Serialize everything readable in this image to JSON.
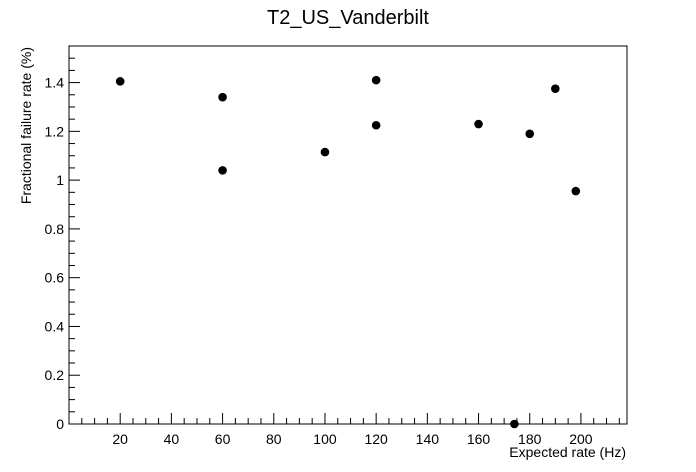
{
  "chart_data": {
    "type": "scatter",
    "title": "T2_US_Vanderbilt",
    "xlabel": "Expected rate (Hz)",
    "ylabel": "Fractional failure rate (%)",
    "xlim": [
      0,
      218
    ],
    "ylim": [
      0,
      1.55
    ],
    "x_ticks": [
      20,
      40,
      60,
      80,
      100,
      120,
      140,
      160,
      180,
      200
    ],
    "y_ticks": [
      0,
      0.2,
      0.4,
      0.6,
      0.8,
      1,
      1.2,
      1.4
    ],
    "x_tick_labels": [
      "20",
      "40",
      "60",
      "80",
      "100",
      "120",
      "140",
      "160",
      "180",
      "200"
    ],
    "y_tick_labels": [
      "0",
      "0.2",
      "0.4",
      "0.6",
      "0.8",
      "1",
      "1.2",
      "1.4"
    ],
    "grid": false,
    "points": [
      {
        "x": 20,
        "y": 1.405
      },
      {
        "x": 60,
        "y": 1.34
      },
      {
        "x": 60,
        "y": 1.04
      },
      {
        "x": 100,
        "y": 1.115
      },
      {
        "x": 120,
        "y": 1.41
      },
      {
        "x": 120,
        "y": 1.225
      },
      {
        "x": 160,
        "y": 1.23
      },
      {
        "x": 174,
        "y": 0.0
      },
      {
        "x": 180,
        "y": 1.19
      },
      {
        "x": 190,
        "y": 1.375
      },
      {
        "x": 198,
        "y": 0.955
      }
    ]
  }
}
